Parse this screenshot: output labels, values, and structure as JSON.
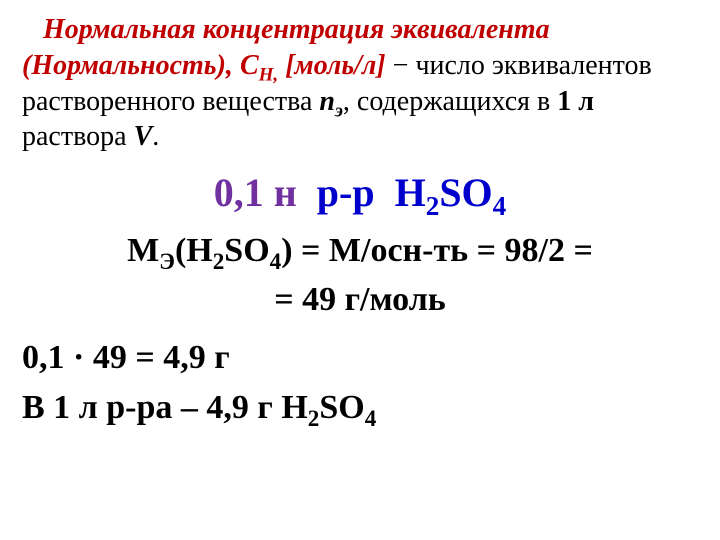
{
  "definition": {
    "indent": "   ",
    "term": "Нормальная концентрация эквивалента (Нормальность),",
    "symbol_main": "С",
    "symbol_sub": "Н,",
    "unit": "[моль/л]",
    "dash": " − ",
    "body1": "число эквивалентов растворенного вещества ",
    "n_sym": "n",
    "n_sub": "э",
    "body2": ", содержащихся в ",
    "one_l": "1 л",
    "body3": " раствора ",
    "V": "V",
    "period": "."
  },
  "example": {
    "conc": "0,1 н",
    "sep": "  р-р  ",
    "formula_H": "H",
    "formula_2a": "2",
    "formula_SO": "SO",
    "formula_4": "4"
  },
  "molar_eq": {
    "M": "М",
    "Esub": "Э",
    "open": "(H",
    "two": "2",
    "SO": "SO",
    "four": "4",
    "close": ")",
    "rhs1": " = М/осн-ть = 98/2 =",
    "rhs2": "= 49 г/моль"
  },
  "mass_calc": "0,1 · 49 = 4,9 г",
  "result": {
    "prefix": "В 1 л  р-ра  –  4,9 г  ",
    "H": "H",
    "two": "2",
    "SO": "SO",
    "four": "4"
  },
  "colors": {
    "term": "#c00000",
    "example_blue": "#0000cc",
    "example_purple": "#7030a0",
    "text": "#000000",
    "background": "#ffffff"
  },
  "typography": {
    "font_family": "Times New Roman",
    "def_fontsize_pt": 21,
    "example_fontsize_pt": 30,
    "calc_fontsize_pt": 26
  }
}
